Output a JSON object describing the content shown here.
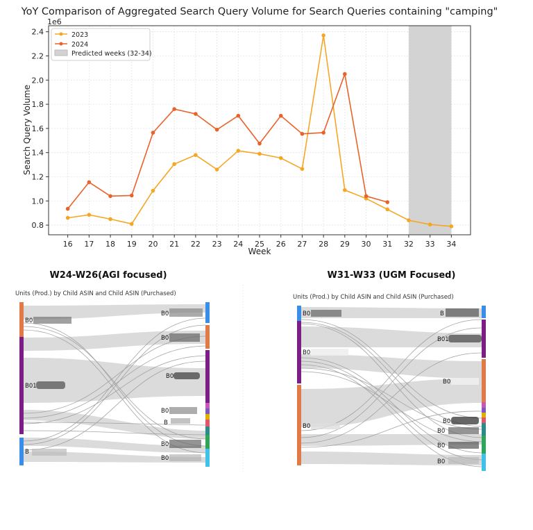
{
  "chart_data": [
    {
      "type": "line",
      "title": "YoY Comparison of Aggregated Search Query Volume for Search Queries containing \"camping\"",
      "xlabel": "Week",
      "ylabel": "Search Query Volume",
      "y_multiplier_label": "1e6",
      "x": [
        16,
        17,
        18,
        19,
        20,
        21,
        22,
        23,
        24,
        25,
        26,
        27,
        28,
        29,
        30,
        31,
        32,
        33,
        34
      ],
      "xlim": [
        15.1,
        34.9
      ],
      "ylim": [
        0.72,
        2.45
      ],
      "yticks": [
        0.8,
        1.0,
        1.2,
        1.4,
        1.6,
        1.8,
        2.0,
        2.2,
        2.4
      ],
      "ytick_labels": [
        "0.8",
        "1.0",
        "1.2",
        "1.4",
        "1.6",
        "1.8",
        "2.0",
        "2.2",
        "2.4"
      ],
      "grid": true,
      "legend_position": "top-left",
      "series": [
        {
          "name": "2023",
          "color": "#f5a623",
          "x": [
            16,
            17,
            18,
            19,
            20,
            21,
            22,
            23,
            24,
            25,
            26,
            27,
            28,
            29,
            30,
            31,
            32,
            33,
            34
          ],
          "values": [
            0.86,
            0.885,
            0.85,
            0.81,
            1.085,
            1.305,
            1.38,
            1.26,
            1.415,
            1.39,
            1.355,
            1.265,
            2.37,
            1.09,
            1.02,
            0.93,
            0.84,
            0.805,
            0.79
          ]
        },
        {
          "name": "2024",
          "color": "#e8622a",
          "x": [
            16,
            17,
            18,
            19,
            20,
            21,
            22,
            23,
            24,
            25,
            26,
            27,
            28,
            29,
            30,
            31
          ],
          "values": [
            0.935,
            1.155,
            1.04,
            1.045,
            1.565,
            1.76,
            1.72,
            1.59,
            1.705,
            1.475,
            1.705,
            1.555,
            1.565,
            2.05,
            1.04,
            0.99
          ]
        }
      ],
      "shaded_region": {
        "label": "Predicted weeks (32-34)",
        "x_range": [
          32,
          34
        ],
        "color": "#d3d3d3"
      }
    }
  ],
  "sankey_left": {
    "title": "W24-W26(AGI focused)",
    "subtitle": "Units (Prod.) by Child ASIN and Child ASIN (Purchased)",
    "source_labels": [
      "B0",
      "B01",
      "B"
    ],
    "target_labels": [
      "B0",
      "B0",
      "B0",
      "B0",
      "B",
      "B0",
      "B0"
    ]
  },
  "sankey_right": {
    "title": "W31-W33 (UGM Focused)",
    "subtitle": "Units (Prod.) by Child ASIN and Child ASIN (Purchased)",
    "source_labels": [
      "B0",
      "B0",
      "B0"
    ],
    "target_labels": [
      "B",
      "B01",
      "B0",
      "B0",
      "B0",
      "B0",
      "B0"
    ]
  },
  "colors": {
    "orange_node": "#e07b48",
    "purple_node": "#7b1f86",
    "blue_node": "#3b8ee8",
    "flow": "#cfcfcf",
    "flow_line": "#8c8c8c"
  }
}
